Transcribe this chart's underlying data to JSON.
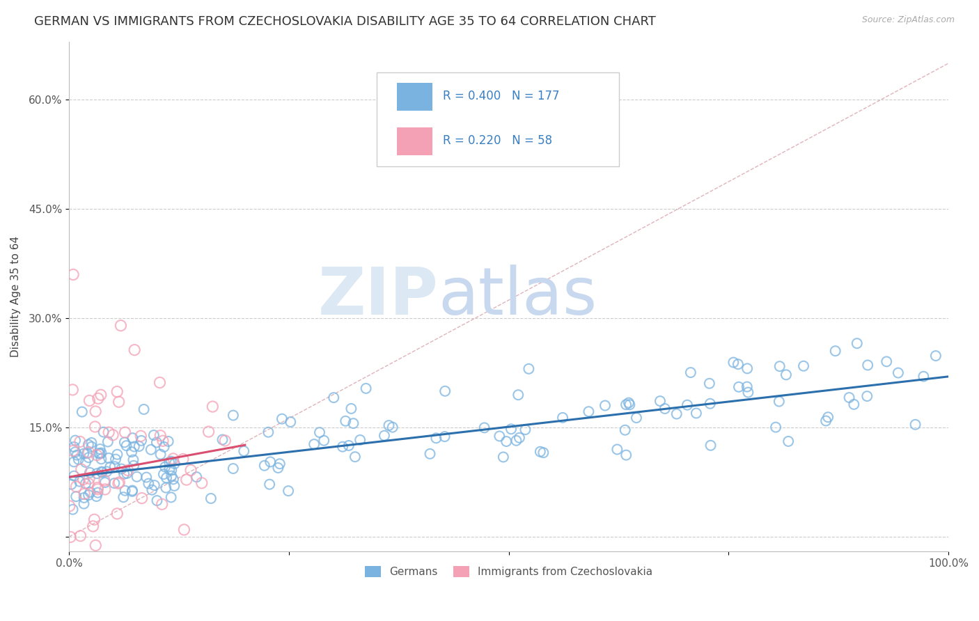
{
  "title": "GERMAN VS IMMIGRANTS FROM CZECHOSLOVAKIA DISABILITY AGE 35 TO 64 CORRELATION CHART",
  "source": "Source: ZipAtlas.com",
  "xlabel": "",
  "ylabel": "Disability Age 35 to 64",
  "xlim": [
    0.0,
    1.0
  ],
  "ylim": [
    -0.02,
    0.68
  ],
  "yticks": [
    0.0,
    0.15,
    0.3,
    0.45,
    0.6
  ],
  "ytick_labels": [
    "",
    "15.0%",
    "30.0%",
    "45.0%",
    "60.0%"
  ],
  "xticks": [
    0.0,
    0.25,
    0.5,
    0.75,
    1.0
  ],
  "xtick_labels": [
    "0.0%",
    "",
    "",
    "",
    "100.0%"
  ],
  "blue_color": "#7ab3e0",
  "pink_color": "#f4a0b5",
  "blue_line_color": "#2c6fad",
  "pink_line_color": "#d94f70",
  "diag_color": "#d8a0a8",
  "legend_R1": "0.400",
  "legend_N1": "177",
  "legend_R2": "0.220",
  "legend_N2": "58",
  "label1": "Germans",
  "label2": "Immigrants from Czechoslovakia",
  "watermark_zip": "ZIP",
  "watermark_atlas": "atlas",
  "title_fontsize": 13,
  "axis_label_fontsize": 11,
  "tick_fontsize": 11,
  "blue_R": 0.4,
  "blue_N": 177,
  "pink_R": 0.22,
  "pink_N": 58,
  "blue_intercept": 0.082,
  "blue_slope": 0.138,
  "pink_intercept": 0.082,
  "pink_slope": 0.22,
  "random_seed_blue": 42,
  "random_seed_pink": 7
}
